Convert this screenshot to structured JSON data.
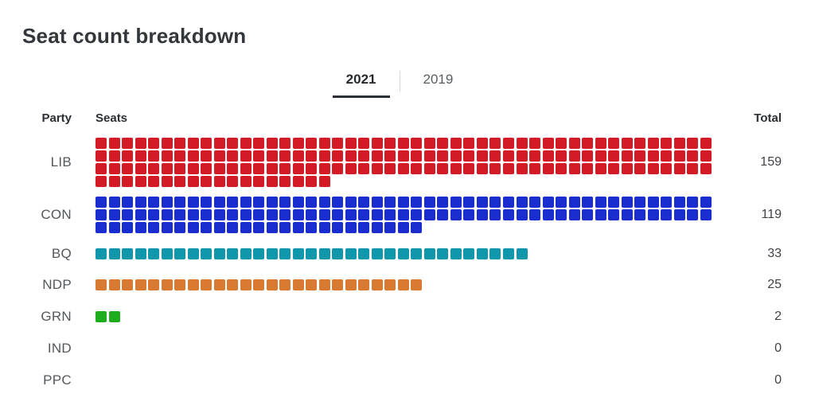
{
  "title": "Seat count breakdown",
  "tabs": {
    "year_2021": "2021",
    "year_2019": "2019",
    "active": "2021"
  },
  "columns": {
    "party": "Party",
    "seats": "Seats",
    "total": "Total"
  },
  "chart_data": {
    "type": "waffle",
    "title": "Seat count breakdown",
    "active_tab": "2021",
    "tab_options": [
      "2021",
      "2019"
    ],
    "columns_per_row": 47,
    "unit": "seats",
    "parties": [
      {
        "code": "LIB",
        "seats": 159,
        "color": "#d21b26"
      },
      {
        "code": "CON",
        "seats": 119,
        "color": "#1a2ed0"
      },
      {
        "code": "BQ",
        "seats": 33,
        "color": "#1097ab"
      },
      {
        "code": "NDP",
        "seats": 25,
        "color": "#d97a33"
      },
      {
        "code": "GRN",
        "seats": 2,
        "color": "#1ead1e"
      },
      {
        "code": "IND",
        "seats": 0
      },
      {
        "code": "PPC",
        "seats": 0
      }
    ]
  }
}
